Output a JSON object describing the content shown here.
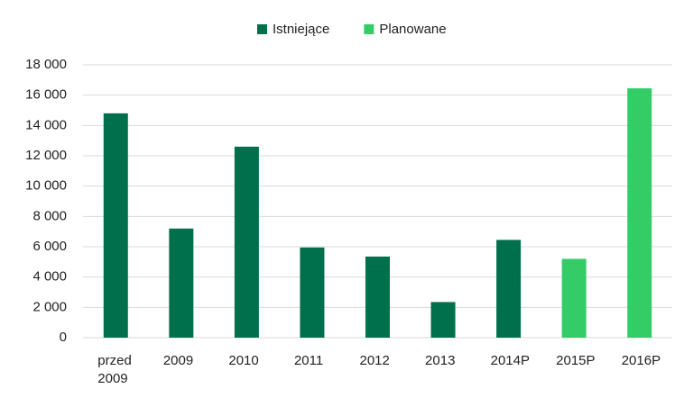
{
  "chart_data": {
    "type": "bar",
    "categories": [
      "przed 2009",
      "2009",
      "2010",
      "2011",
      "2012",
      "2013",
      "2014P",
      "2015P",
      "2016P"
    ],
    "series": [
      {
        "name": "Istniejące",
        "color": "#006f4c",
        "values": [
          14800,
          7200,
          12600,
          5950,
          5350,
          2350,
          6450,
          null,
          null
        ]
      },
      {
        "name": "Planowane",
        "color": "#33cc66",
        "values": [
          null,
          null,
          null,
          null,
          null,
          null,
          null,
          5200,
          16450
        ]
      }
    ],
    "ylim": [
      0,
      18000
    ],
    "yticks": [
      0,
      {
        "value": 2000,
        "label": "2 000"
      },
      {
        "value": 4000,
        "label": "4 000"
      },
      {
        "value": 6000,
        "label": "6 000"
      },
      {
        "value": 8000,
        "label": "8 000"
      },
      {
        "value": 10000,
        "label": "10 000"
      },
      {
        "value": 12000,
        "label": "12 000"
      },
      {
        "value": 14000,
        "label": "14 000"
      },
      {
        "value": 16000,
        "label": "16 000"
      },
      {
        "value": 18000,
        "label": "18 000"
      }
    ],
    "grid": true,
    "legend": "top"
  }
}
